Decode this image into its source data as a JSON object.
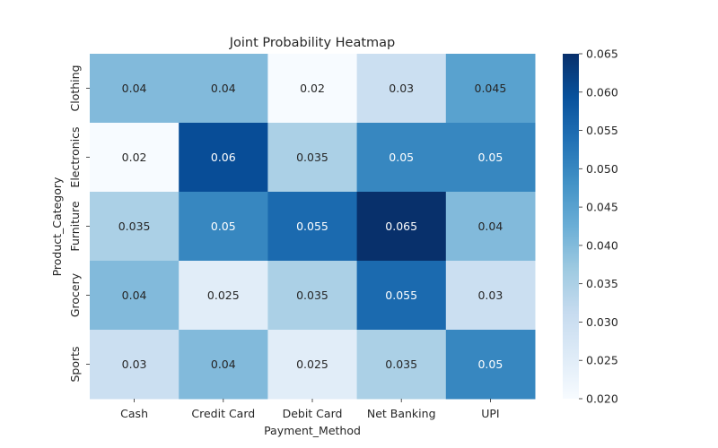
{
  "chart_data": {
    "type": "heatmap",
    "title": "Joint Probability Heatmap",
    "xlabel": "Payment_Method",
    "ylabel": "Product_Category",
    "x_categories": [
      "Cash",
      "Credit Card",
      "Debit Card",
      "Net Banking",
      "UPI"
    ],
    "y_categories": [
      "Clothing",
      "Electronics",
      "Furniture",
      "Grocery",
      "Sports"
    ],
    "values": [
      [
        0.04,
        0.04,
        0.02,
        0.03,
        0.045
      ],
      [
        0.02,
        0.06,
        0.035,
        0.05,
        0.05
      ],
      [
        0.035,
        0.05,
        0.055,
        0.065,
        0.04
      ],
      [
        0.04,
        0.025,
        0.035,
        0.055,
        0.03
      ],
      [
        0.03,
        0.04,
        0.025,
        0.035,
        0.05
      ]
    ],
    "value_labels": [
      [
        "0.04",
        "0.04",
        "0.02",
        "0.03",
        "0.045"
      ],
      [
        "0.02",
        "0.06",
        "0.035",
        "0.05",
        "0.05"
      ],
      [
        "0.035",
        "0.05",
        "0.055",
        "0.065",
        "0.04"
      ],
      [
        "0.04",
        "0.025",
        "0.035",
        "0.055",
        "0.03"
      ],
      [
        "0.03",
        "0.04",
        "0.025",
        "0.035",
        "0.05"
      ]
    ],
    "colorbar": {
      "min": 0.02,
      "max": 0.065,
      "tick_values": [
        0.02,
        0.025,
        0.03,
        0.035,
        0.04,
        0.045,
        0.05,
        0.055,
        0.06,
        0.065
      ],
      "tick_labels": [
        "0.020",
        "0.025",
        "0.030",
        "0.035",
        "0.040",
        "0.045",
        "0.050",
        "0.055",
        "0.060",
        "0.065"
      ]
    },
    "colormap": "Blues",
    "colormap_stops": [
      "#f7fbff",
      "#deebf7",
      "#c6dbef",
      "#9ecae1",
      "#6baed6",
      "#4292c6",
      "#2171b5",
      "#08519c",
      "#08306b"
    ],
    "grid": false,
    "legend": "none"
  }
}
